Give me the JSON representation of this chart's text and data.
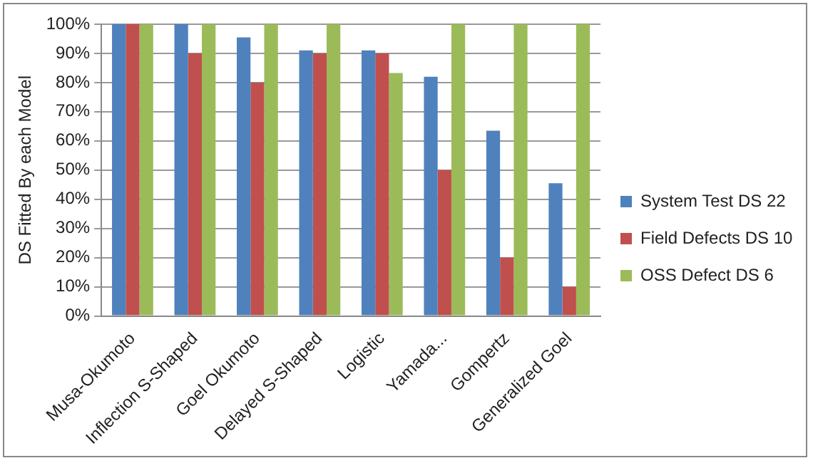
{
  "chart_data": {
    "type": "bar",
    "ylabel": "DS Fitted By each Model",
    "categories": [
      "Musa-Okumoto",
      "Inflection S-Shaped",
      "Goel Okumoto",
      "Delayed S-Shaped",
      "Logistic",
      "Yamada...",
      "Gompertz",
      "Generalized Goel"
    ],
    "series": [
      {
        "name": "System Test DS 22",
        "color": "#4f81bd",
        "values": [
          100,
          100,
          95.5,
          91,
          91,
          82,
          63.5,
          45.5
        ]
      },
      {
        "name": "Field Defects DS 10",
        "color": "#c0504d",
        "values": [
          100,
          90,
          80,
          90,
          90,
          50,
          20,
          10
        ]
      },
      {
        "name": "OSS Defect DS 6",
        "color": "#9bbb59",
        "values": [
          100,
          100,
          100,
          100,
          83.3,
          100,
          100,
          100
        ]
      }
    ],
    "ylim": [
      0,
      100
    ],
    "yticks": [
      {
        "value": 0,
        "label": "0%"
      },
      {
        "value": 10,
        "label": "10%"
      },
      {
        "value": 20,
        "label": "20%"
      },
      {
        "value": 30,
        "label": "30%"
      },
      {
        "value": 40,
        "label": "40%"
      },
      {
        "value": 50,
        "label": "50%"
      },
      {
        "value": 60,
        "label": "60%"
      },
      {
        "value": 70,
        "label": "70%"
      },
      {
        "value": 80,
        "label": "80%"
      },
      {
        "value": 90,
        "label": "90%"
      },
      {
        "value": 100,
        "label": "100%"
      }
    ],
    "grid": "y",
    "legend": "right"
  }
}
